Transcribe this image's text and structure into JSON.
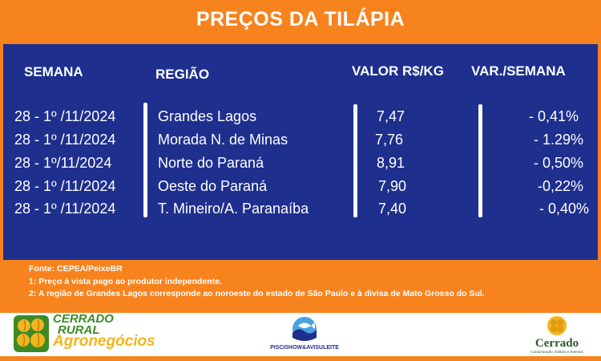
{
  "header": {
    "title": "PREÇOS DA TILÁPIA"
  },
  "table": {
    "headers": {
      "week": "SEMANA",
      "region": "REGIÃO",
      "value": "VALOR R$/KG",
      "variation": "VAR./SEMANA"
    },
    "rows": [
      {
        "week": "28 - 1º /11/2024",
        "region": "Grandes Lagos",
        "value": "7,47",
        "variation": "- 0,41%"
      },
      {
        "week": "28 - 1º /11/2024",
        "region": "Morada N. de Minas",
        "value": "7,76",
        "variation": "- 1.29%"
      },
      {
        "week": "28 - 1º/11/2024",
        "region": "Norte do Paraná",
        "value": "8,91",
        "variation": "- 0,50%"
      },
      {
        "week": "28 - 1º /11/2024",
        "region": "Oeste do Paraná",
        "value": "7,90",
        "variation": "-0,22%"
      },
      {
        "week": "28 - 1º /11/2024",
        "region": "T. Mineiro/A. Paranaíba",
        "value": "7,40",
        "variation": "- 0,40%"
      }
    ]
  },
  "notes": {
    "source": "Fonte: CEPEA/PeixeBR",
    "note1": "1: Preço à vista pago ao produtor independente.",
    "note2": "2: A região de Grandes Lagos corresponde ao noroeste do estado de São Paulo e à divisa de Mato Grosso do Sul."
  },
  "logos": {
    "left": {
      "line1": "CERRADO",
      "line2": "RURAL",
      "line3": "Agronegócios"
    },
    "middle": {
      "text": "PISCISHOW&AVISULEITE"
    },
    "right": {
      "name": "Cerrado",
      "subtitle": "Comunicação, Editora e Eventos"
    }
  },
  "colors": {
    "orange": "#f7831f",
    "navy": "#1e2f8e",
    "green": "#3c8a26",
    "gold": "#f2b51c"
  }
}
